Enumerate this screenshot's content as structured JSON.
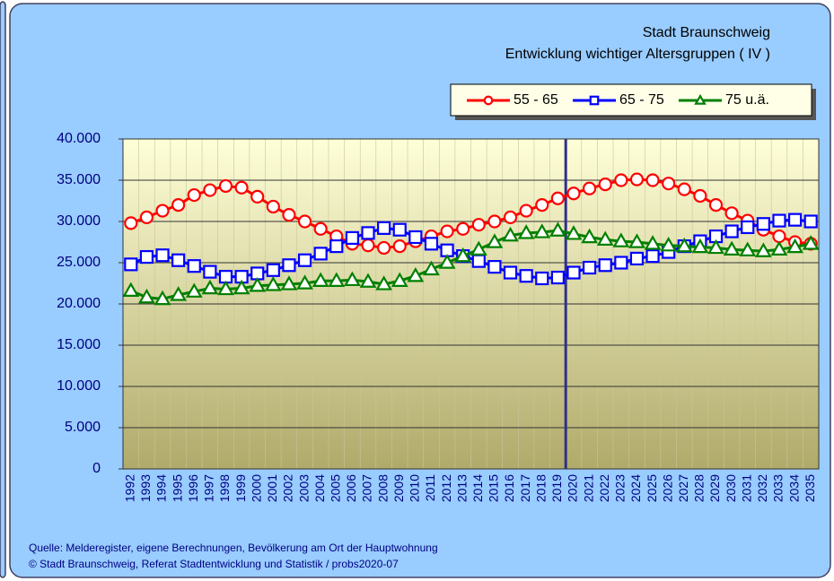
{
  "chart_data": {
    "type": "line",
    "title": "Stadt Braunschweig",
    "subtitle": "Entwicklung wichtiger Altersgruppen ( IV )",
    "categories": [
      "1992",
      "1993",
      "1994",
      "1995",
      "1996",
      "1997",
      "1998",
      "1999",
      "2000",
      "2001",
      "2002",
      "2003",
      "2004",
      "2005",
      "2006",
      "2007",
      "2008",
      "2009",
      "2010",
      "2011",
      "2012",
      "2013",
      "2014",
      "2015",
      "2016",
      "2017",
      "2018",
      "2019",
      "2020",
      "2021",
      "2022",
      "2023",
      "2024",
      "2025",
      "2026",
      "2027",
      "2028",
      "2029",
      "2030",
      "2031",
      "2032",
      "2033",
      "2034",
      "2035"
    ],
    "series": [
      {
        "name": "55 - 65",
        "color": "#ff0000",
        "marker": "circle",
        "values": [
          29800,
          30500,
          31300,
          32000,
          33200,
          33800,
          34300,
          34100,
          33000,
          31800,
          30800,
          30000,
          29100,
          28200,
          27300,
          27100,
          26800,
          27000,
          27600,
          28200,
          28800,
          29100,
          29600,
          30000,
          30500,
          31300,
          32000,
          32800,
          33400,
          34000,
          34500,
          35000,
          35100,
          35000,
          34600,
          33900,
          33100,
          32000,
          31000,
          30100,
          29000,
          28200,
          27500,
          27300
        ]
      },
      {
        "name": "65 - 75",
        "color": "#0000ff",
        "marker": "square",
        "values": [
          24800,
          25700,
          25900,
          25300,
          24600,
          23900,
          23300,
          23300,
          23700,
          24100,
          24700,
          25300,
          26100,
          27000,
          28000,
          28600,
          29200,
          29000,
          28100,
          27300,
          26500,
          25800,
          25200,
          24500,
          23800,
          23400,
          23100,
          23200,
          23800,
          24400,
          24700,
          25000,
          25500,
          25800,
          26300,
          27000,
          27600,
          28200,
          28800,
          29300,
          29700,
          30100,
          30200,
          30000
        ]
      },
      {
        "name": "75 u.ä.",
        "color": "#008000",
        "marker": "triangle",
        "values": [
          21600,
          20800,
          20600,
          21100,
          21500,
          21900,
          21800,
          21900,
          22200,
          22300,
          22400,
          22500,
          22800,
          22800,
          22900,
          22700,
          22400,
          22800,
          23400,
          24200,
          25000,
          25800,
          26600,
          27500,
          28300,
          28600,
          28700,
          28900,
          28500,
          28100,
          27800,
          27600,
          27500,
          27300,
          27100,
          27000,
          26900,
          26800,
          26600,
          26500,
          26400,
          26600,
          26900,
          27300
        ]
      }
    ],
    "ylim": [
      0,
      40000
    ],
    "yticks": [
      0,
      {
        "value": 5000,
        "label": "5.000"
      },
      {
        "value": 10000,
        "label": "10.000"
      },
      {
        "value": 15000,
        "label": "15.000"
      },
      {
        "value": 20000,
        "label": "20.000"
      },
      {
        "value": 25000,
        "label": "25.000"
      },
      {
        "value": 30000,
        "label": "30.000"
      },
      {
        "value": 35000,
        "label": "35.000"
      },
      {
        "value": 40000,
        "label": "40.000"
      }
    ],
    "grid": true,
    "legend": "top-right",
    "source": [
      "Quelle: Melderegister, eigene Berechnungen, Bevölkerung am Ort der Hauptwohnung",
      "© Stadt Braunschweig, Referat Stadtentwicklung und Statistik / probs2020-07"
    ]
  }
}
